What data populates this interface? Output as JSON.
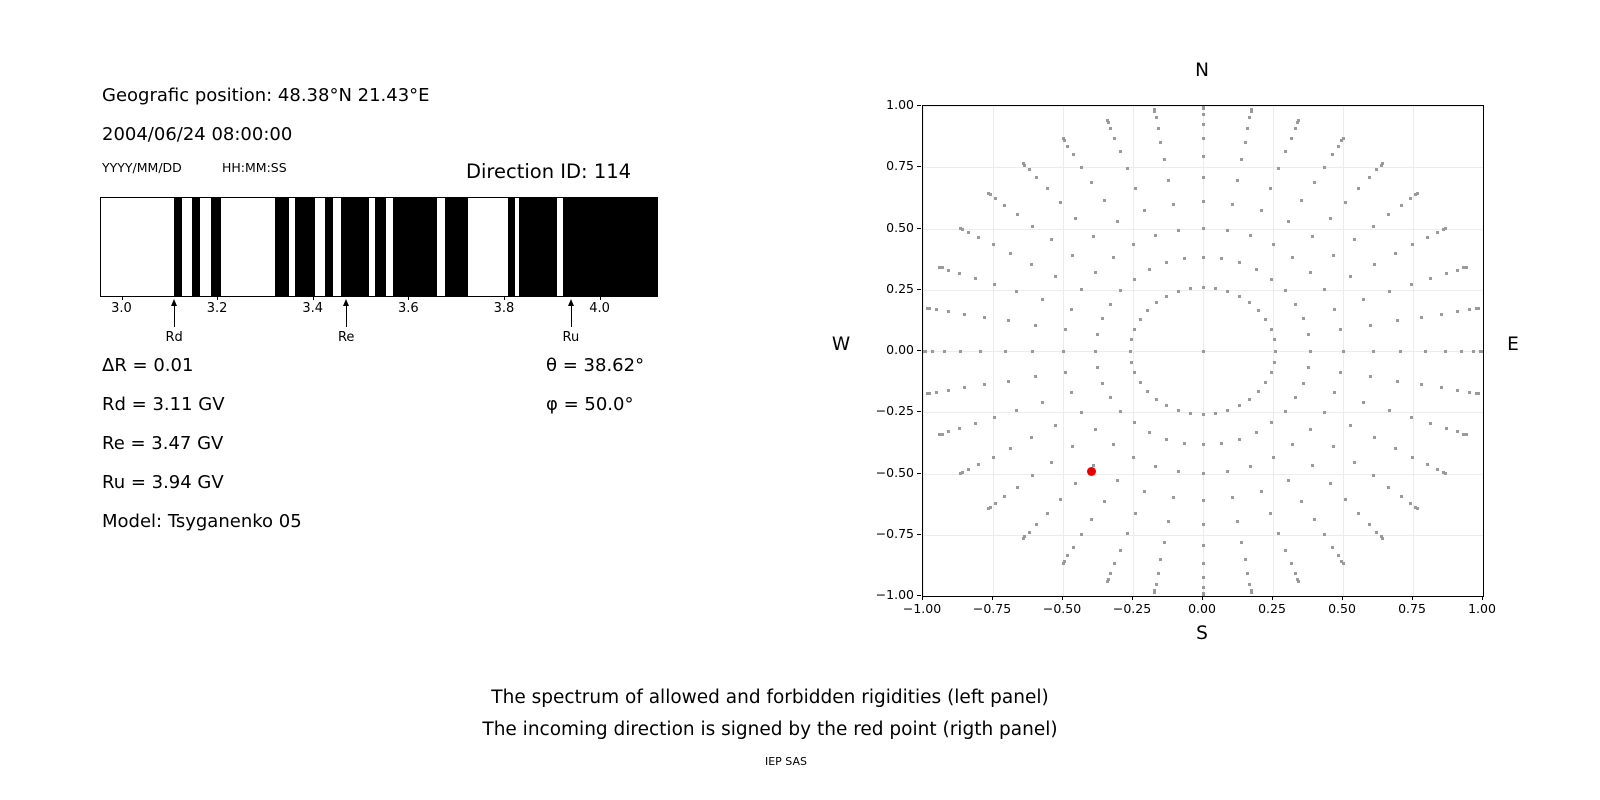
{
  "header": {
    "geo_position": "Geografic position: 48.38°N 21.43°E",
    "datetime": "2004/06/24 08:00:00",
    "date_format": "YYYY/MM/DD",
    "time_format": "HH:MM:SS",
    "direction_id": "Direction ID: 114"
  },
  "readouts": {
    "delta_r": "ΔR = 0.01",
    "rd": "Rd = 3.11 GV",
    "re": "Re = 3.47 GV",
    "ru": "Ru = 3.94 GV",
    "model": "Model: Tsyganenko 05",
    "theta": "θ = 38.62°",
    "phi": "φ = 50.0°"
  },
  "compass": {
    "n": "N",
    "s": "S",
    "e": "E",
    "w": "W"
  },
  "captions": {
    "line1": "The spectrum of allowed and forbidden rigidities (left panel)",
    "line2": "The incoming direction is signed by the red point (rigth panel)",
    "credit": "IEP SAS"
  },
  "colors": {
    "band": "#000000",
    "grid_dot": "#9a9a9a",
    "red_point": "#e80000",
    "gridline": "#ececec"
  },
  "chart_data": [
    {
      "type": "barcode",
      "title": "Rigidity spectrum: black = allowed, white = forbidden",
      "unit": "GV",
      "xlim": [
        2.955,
        4.118
      ],
      "allowed_bands_gv": [
        [
          3.108,
          3.124
        ],
        [
          3.146,
          3.162
        ],
        [
          3.186,
          3.205
        ],
        [
          3.318,
          3.349
        ],
        [
          3.36,
          3.402
        ],
        [
          3.423,
          3.44
        ],
        [
          3.458,
          3.515
        ],
        [
          3.528,
          3.552
        ],
        [
          3.565,
          3.658
        ],
        [
          3.675,
          3.722
        ],
        [
          3.806,
          3.82
        ],
        [
          3.83,
          3.908
        ],
        [
          3.922,
          4.118
        ]
      ],
      "x_ticks": [
        3.0,
        3.2,
        3.4,
        3.6,
        3.8,
        4.0
      ],
      "x_tick_labels": [
        "3.0",
        "3.2",
        "3.4",
        "3.6",
        "3.8",
        "4.0"
      ],
      "arrows": [
        {
          "label": "Rd",
          "gv": 3.11
        },
        {
          "label": "Re",
          "gv": 3.47
        },
        {
          "label": "Ru",
          "gv": 3.94
        }
      ]
    },
    {
      "type": "scatter",
      "title": "Incoming direction grid (N up, E right); red point = direction ID 114",
      "xlim": [
        -1,
        1
      ],
      "ylim": [
        -1,
        1
      ],
      "x_ticks": [
        -1,
        -0.75,
        -0.5,
        -0.25,
        0,
        0.25,
        0.5,
        0.75,
        1
      ],
      "x_tick_labels": [
        "−1.00",
        "−0.75",
        "−0.50",
        "−0.25",
        "0.00",
        "0.25",
        "0.50",
        "0.75",
        "1.00"
      ],
      "y_ticks": [
        1,
        0.75,
        0.5,
        0.25,
        0,
        -0.25,
        -0.5,
        -0.75,
        -1
      ],
      "y_tick_labels": [
        "1.00",
        "0.75",
        "0.50",
        "0.25",
        "0.00",
        "−0.25",
        "−0.50",
        "−0.75",
        "−1.00"
      ],
      "grid": true,
      "direction_grid": {
        "azimuth_step_deg": 10,
        "zenith_ring_radii": [
          0.259,
          0.383,
          0.5,
          0.609,
          0.707,
          0.793,
          0.866,
          0.924,
          0.966,
          0.991,
          1.0
        ],
        "center_dot": true
      },
      "red_point": {
        "x": -0.4,
        "y": -0.49,
        "zenith_deg": 38.62,
        "azimuth_deg": 50.0
      }
    }
  ]
}
